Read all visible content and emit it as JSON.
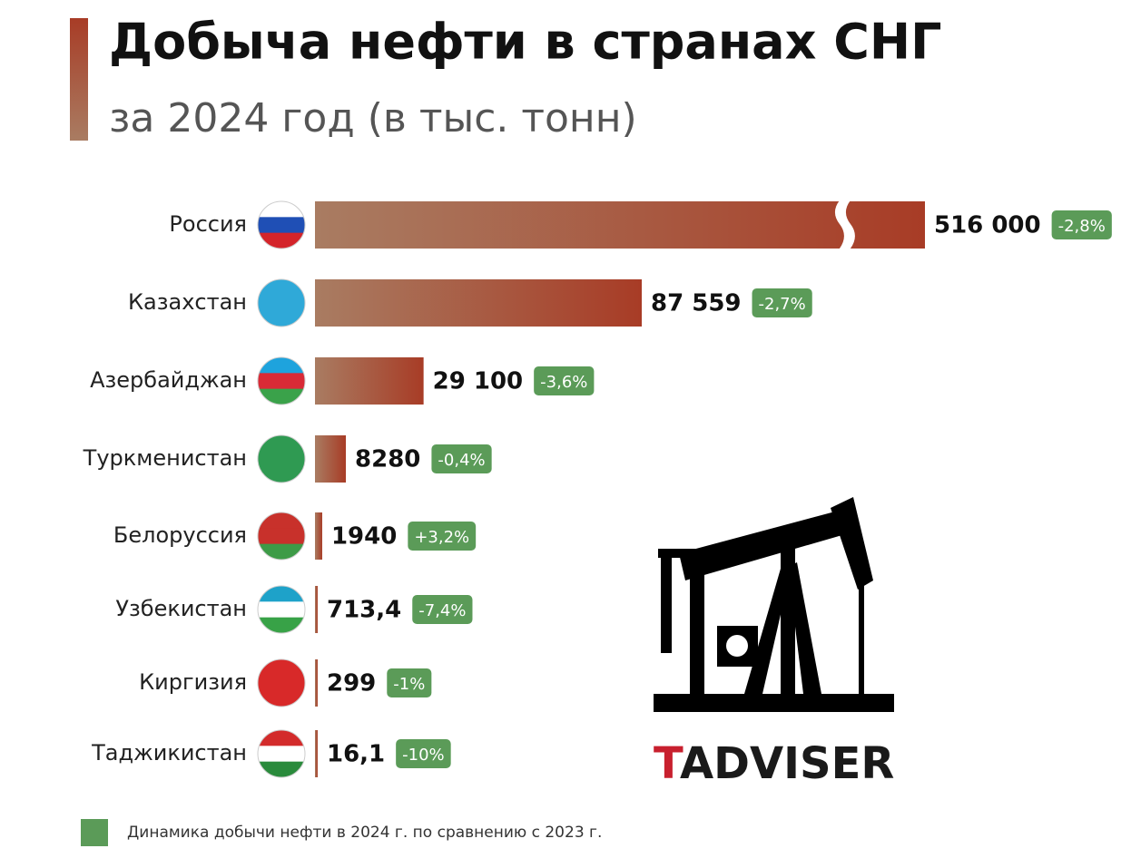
{
  "chart_data": {
    "type": "bar",
    "title": "Добыча нефти в странах СНГ",
    "subtitle": "за 2024 год (в тыс. тонн)",
    "categories": [
      "Россия",
      "Казахстан",
      "Азербайджан",
      "Туркменистан",
      "Белоруссия",
      "Узбекистан",
      "Киргизия",
      "Таджикистан"
    ],
    "values": [
      516000,
      87559,
      29100,
      8280,
      1940,
      713.4,
      299,
      16.1
    ],
    "value_labels": [
      "516 000",
      "87 559",
      "29 100",
      "8280",
      "1940",
      "713,4",
      "299",
      "16,1"
    ],
    "changes": [
      -2.8,
      -2.7,
      -3.6,
      -0.4,
      3.2,
      -7.4,
      -1,
      -10
    ],
    "change_labels": [
      "-2,8%",
      "-2,7%",
      "-3,6%",
      "-0,4%",
      "+3,2%",
      "-7,4%",
      "-1%",
      "-10%"
    ],
    "change_color": "#5b9b58",
    "legend": "Динамика добычи нефти в 2024 г. по сравнению с 2023 г.",
    "logo": {
      "first": "T",
      "rest": "ADVISER"
    }
  }
}
